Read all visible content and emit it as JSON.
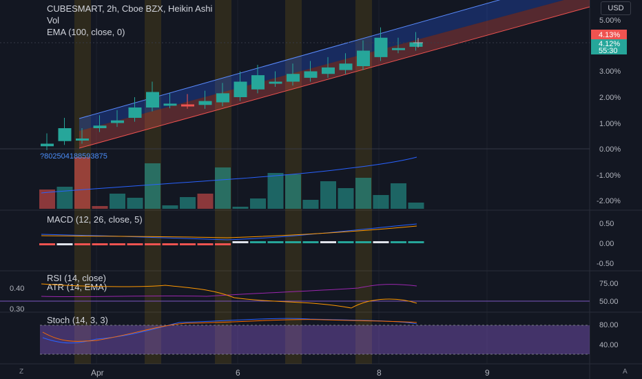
{
  "symbol_legend": "CUBESMART, 2h, Cboe BZX, Heikin Ashi",
  "vol_legend": "Vol",
  "ema_legend": "EMA (100, close, 0)",
  "currency": "USD",
  "price_labels": {
    "last_red": "4.13%",
    "last_teal": "4.12%",
    "countdown": "55:30"
  },
  "price_axis": [
    "5.00%",
    "4.00%",
    "3.00%",
    "2.00%",
    "1.00%",
    "0.00%",
    "-1.00%",
    "-2.00%"
  ],
  "macd_legend": "MACD (12, 26, close, 5)",
  "macd_axis": [
    "0.50",
    "0.00",
    "-0.50"
  ],
  "rsi_legend": "RSI (14, close)",
  "atr_legend": "ATR (14, EMA)",
  "rsi_axis": [
    "75.00",
    "50.00"
  ],
  "atr_left_axis": [
    "0.40",
    "0.30"
  ],
  "stoch_legend": "Stoch (14, 3, 3)",
  "stoch_axis": [
    "80.00",
    "40.00"
  ],
  "overflow_value": "?802504188593875",
  "time_labels": [
    "Apr",
    "6",
    "8",
    "9"
  ],
  "corner_buttons": {
    "left": "Z",
    "right": "A"
  },
  "colors": {
    "background": "#131722",
    "up": "#26a69a",
    "down": "#ef5350",
    "ema": "#2962ff",
    "highlight": "#f7b500"
  },
  "chart_data": {
    "type": "candlestick",
    "x": [
      1,
      2,
      3,
      4,
      5,
      6,
      7,
      8,
      9,
      10,
      11,
      12,
      13,
      14,
      15,
      16,
      17,
      18,
      19,
      20,
      21,
      22
    ],
    "open": [
      0.1,
      0.3,
      0.35,
      0.8,
      1.0,
      1.2,
      1.6,
      1.72,
      1.72,
      1.7,
      1.8,
      2.0,
      2.3,
      2.55,
      2.6,
      2.75,
      2.9,
      3.05,
      3.2,
      3.55,
      3.85,
      3.95
    ],
    "close": [
      0.2,
      0.8,
      0.4,
      0.9,
      1.1,
      1.6,
      2.2,
      1.75,
      1.7,
      1.85,
      2.15,
      2.6,
      2.85,
      2.6,
      2.9,
      3.0,
      3.15,
      3.3,
      3.8,
      4.3,
      3.9,
      4.12
    ],
    "volume_relative": [
      0.28,
      0.32,
      0.75,
      0.04,
      0.22,
      0.16,
      0.66,
      0.05,
      0.17,
      0.22,
      0.6,
      0.03,
      0.15,
      0.52,
      0.5,
      0.13,
      0.4,
      0.3,
      0.45,
      0.2,
      0.37,
      0.09
    ],
    "volume_direction": [
      "down",
      "up",
      "down",
      "down",
      "up",
      "up",
      "up",
      "up",
      "up",
      "down",
      "up",
      "up",
      "up",
      "up",
      "up",
      "up",
      "up",
      "up",
      "up",
      "up",
      "up",
      "up"
    ],
    "ylim": [
      -2.3,
      5.4
    ],
    "highlight_bands_x": [
      3,
      7,
      11,
      15,
      19
    ]
  }
}
